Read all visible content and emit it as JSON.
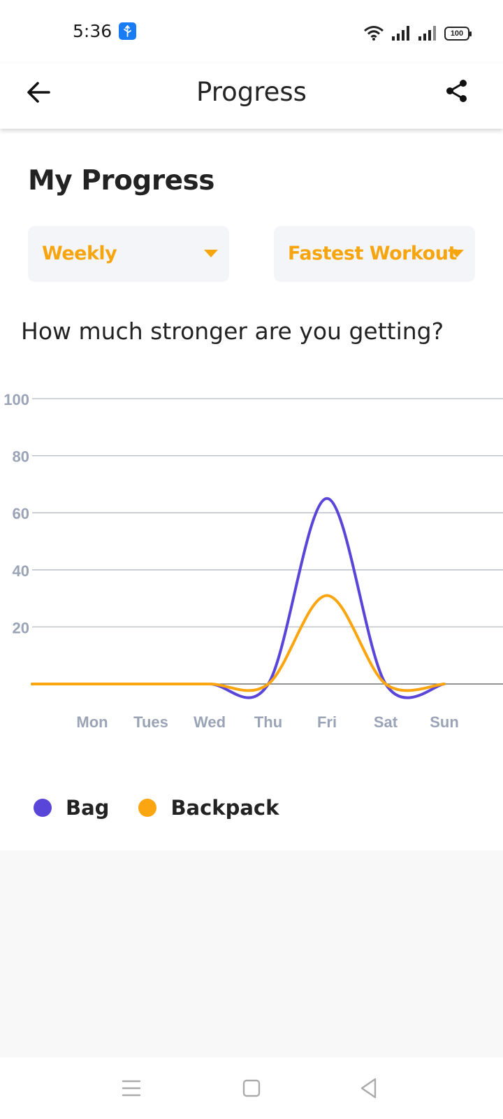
{
  "status_bar": {
    "time": "5:36",
    "battery": "100",
    "icons": [
      "usb-icon",
      "wifi-icon",
      "signal-icon",
      "signal-icon",
      "battery-icon"
    ]
  },
  "app_bar": {
    "title": "Progress",
    "back_icon": "arrow-left-icon",
    "share_icon": "share-icon"
  },
  "section": {
    "title": "My Progress"
  },
  "filters": {
    "period": "Weekly",
    "metric": "Fastest Workout",
    "caret_icon": "caret-down-icon"
  },
  "question": "How much stronger are you getting?",
  "colors": {
    "accent": "#f6a50f",
    "bag": "#5a45d9",
    "backpack": "#fba510",
    "grid": "#b5b9c2",
    "axis_text": "#9aa4b6"
  },
  "chart_data": {
    "type": "line",
    "smooth": true,
    "categories": [
      "Mon",
      "Tues",
      "Wed",
      "Thu",
      "Fri",
      "Sat",
      "Sun"
    ],
    "series": [
      {
        "name": "Bag",
        "values": [
          0,
          0,
          0,
          0,
          65,
          0,
          0
        ]
      },
      {
        "name": "Backpack",
        "values": [
          0,
          0,
          0,
          0,
          31,
          0,
          0
        ]
      }
    ],
    "y_ticks": [
      20,
      40,
      60,
      80,
      100
    ],
    "ylim": [
      0,
      100
    ],
    "grid": true,
    "legend": "bottom-left"
  },
  "nav_bar": {
    "icons": [
      "menu-icon",
      "home-square-icon",
      "back-triangle-icon"
    ]
  }
}
